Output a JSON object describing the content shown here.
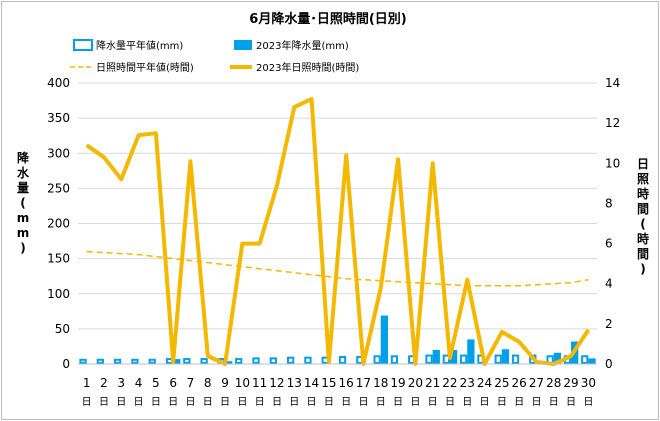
{
  "chart_data": {
    "type": "bar+line",
    "title": "6月降水量･日照時間(日別)",
    "categories": [
      "1",
      "2",
      "3",
      "4",
      "5",
      "6",
      "7",
      "8",
      "9",
      "10",
      "11",
      "12",
      "13",
      "14",
      "15",
      "16",
      "17",
      "18",
      "19",
      "20",
      "21",
      "22",
      "23",
      "24",
      "25",
      "26",
      "27",
      "28",
      "29",
      "30"
    ],
    "category_suffix": "日",
    "y_left": {
      "label": "降水量(mm)",
      "label_chars": [
        "降",
        "水",
        "量",
        "(",
        "m",
        "m",
        ")"
      ],
      "ylim": [
        0,
        400
      ],
      "ticks": [
        0,
        50,
        100,
        150,
        200,
        250,
        300,
        350,
        400
      ]
    },
    "y_right": {
      "label": "日照時間(時間)",
      "label_chars": [
        "日",
        "照",
        "時",
        "間",
        "(",
        "時",
        "間",
        ")"
      ],
      "ylim": [
        0,
        14
      ],
      "ticks": [
        0,
        2,
        4,
        6,
        8,
        10,
        12,
        14
      ]
    },
    "series": [
      {
        "name": "降水量平年値(mm)",
        "type": "bar",
        "axis": "left",
        "color": "#00a0e8",
        "fill": "none",
        "values": [
          6,
          6,
          6,
          6,
          6,
          7,
          7,
          7,
          7,
          7,
          8,
          8,
          9,
          9,
          9,
          10,
          10,
          11,
          11,
          11,
          12,
          12,
          12,
          12,
          12,
          12,
          12,
          11,
          11,
          11
        ]
      },
      {
        "name": "2023年降水量(mm)",
        "type": "bar",
        "axis": "left",
        "color": "#00a0e8",
        "fill": "solid",
        "values": [
          0,
          0,
          0,
          0,
          0,
          7,
          0,
          0,
          4,
          0,
          0,
          0,
          0,
          0,
          0,
          0,
          0,
          69,
          0,
          0,
          20,
          20,
          35,
          0,
          21,
          0,
          0,
          16,
          32,
          8
        ]
      },
      {
        "name": "日照時間平年値(時間)",
        "type": "line",
        "axis": "right",
        "color": "#f5b800",
        "dash": true,
        "values": [
          5.6,
          5.55,
          5.5,
          5.45,
          5.35,
          5.25,
          5.15,
          5.05,
          4.95,
          4.85,
          4.75,
          4.65,
          4.55,
          4.45,
          4.35,
          4.25,
          4.2,
          4.15,
          4.1,
          4.05,
          4.0,
          3.95,
          3.9,
          3.9,
          3.9,
          3.9,
          3.95,
          4.0,
          4.05,
          4.2
        ]
      },
      {
        "name": "2023年日照時間(時間)",
        "type": "line",
        "axis": "right",
        "color": "#f5b800",
        "dash": false,
        "values": [
          10.9,
          10.3,
          9.2,
          11.4,
          11.5,
          0.1,
          10.1,
          0.4,
          0.0,
          6.0,
          6.0,
          8.9,
          12.8,
          13.2,
          0.1,
          10.4,
          0.0,
          3.8,
          10.2,
          0.0,
          10.0,
          0.3,
          4.2,
          0.0,
          1.6,
          1.1,
          0.1,
          0.0,
          0.4,
          1.7
        ]
      }
    ],
    "grid": "horizontal",
    "legend": "top"
  }
}
